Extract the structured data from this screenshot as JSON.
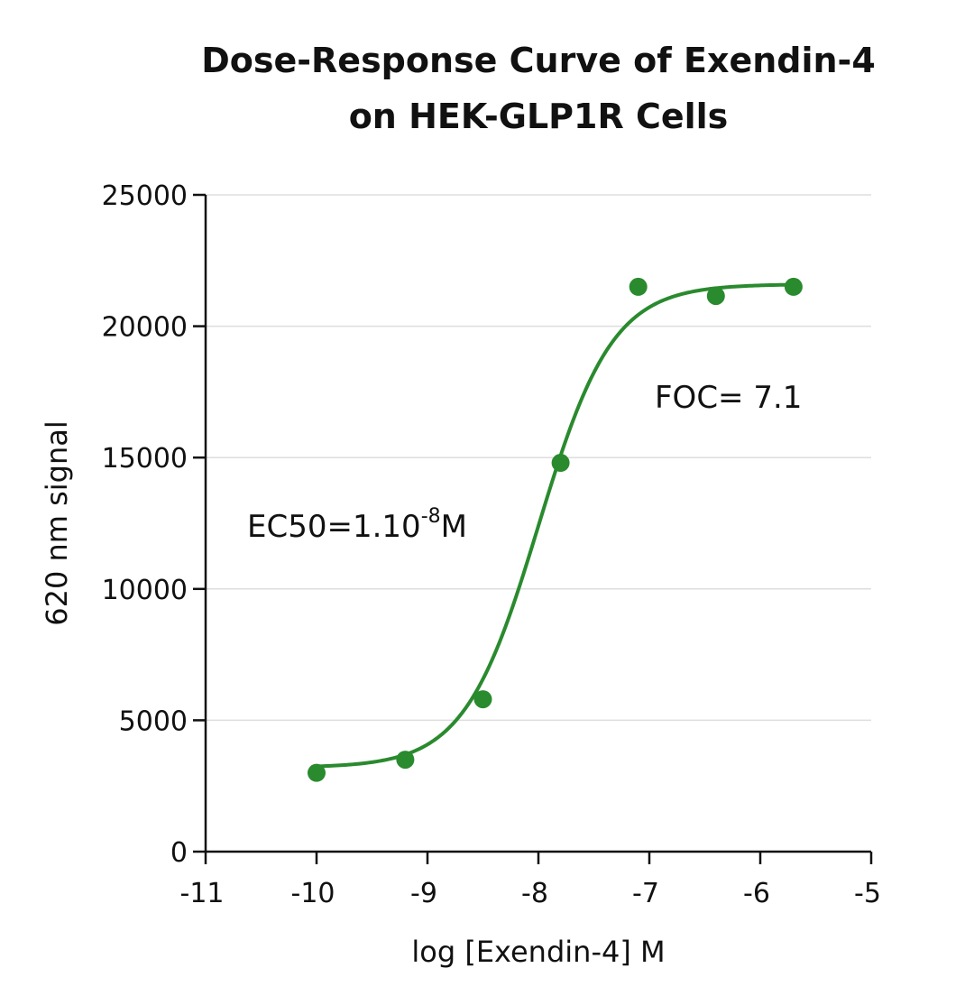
{
  "chart_data": {
    "type": "scatter",
    "title": [
      "Dose-Response Curve of Exendin-4",
      "on HEK-GLP1R Cells"
    ],
    "xlabel": "log [Exendin-4] M",
    "ylabel": "620 nm signal",
    "xlim": [
      -11,
      -5
    ],
    "ylim": [
      0,
      25000
    ],
    "xticks": [
      -11,
      -10,
      -9,
      -8,
      -7,
      -6,
      -5
    ],
    "xtick_labels": [
      "-11",
      "-10",
      "-9",
      "-8",
      "-7",
      "-6",
      "-5"
    ],
    "yticks": [
      0,
      5000,
      10000,
      15000,
      20000,
      25000
    ],
    "ytick_labels": [
      "0",
      "5000",
      "10000",
      "15000",
      "20000",
      "25000"
    ],
    "grid": "horizontal",
    "series": [
      {
        "name": "Exendin-4",
        "color": "#2a8a2e",
        "x": [
          -10,
          -9.2,
          -8.5,
          -7.8,
          -7.1,
          -6.4,
          -5.7
        ],
        "y": [
          3000,
          3500,
          5800,
          14800,
          21500,
          21150,
          21500
        ]
      }
    ],
    "fit": {
      "type": "four-parameter-logistic",
      "color": "#2a8a2e",
      "bottom": 3200,
      "top": 21600,
      "log_ec50": -8.0,
      "hill_slope": 1.3,
      "x_range": [
        -10,
        -5.7
      ]
    },
    "annotations": [
      {
        "name": "ec50",
        "base": "EC50=1.10",
        "sup": "-8",
        "tail": "M"
      },
      {
        "name": "foc",
        "text": "FOC= 7.1"
      }
    ]
  }
}
